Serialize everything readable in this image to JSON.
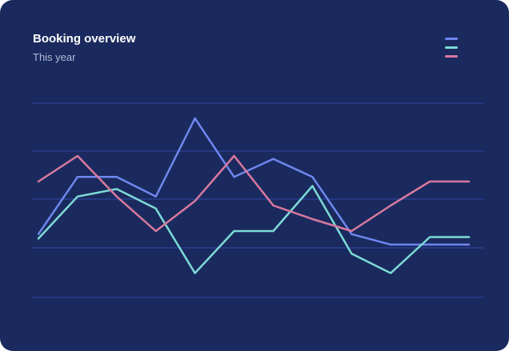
{
  "header": {
    "title": "Booking overview",
    "subtitle": "This year"
  },
  "colors": {
    "background": "#1b2a5e",
    "grid": "#3048a8",
    "series": [
      "#6f87ef",
      "#7ddbd6",
      "#d9799f"
    ]
  },
  "legend": {
    "icons": [
      "legend-line-blue",
      "legend-line-teal",
      "legend-line-pink"
    ]
  },
  "chart_data": {
    "type": "line",
    "title": "Booking overview",
    "subtitle": "This year",
    "xlabel": "",
    "ylabel": "",
    "x": [
      0,
      1,
      2,
      3,
      4,
      5,
      6,
      7,
      8,
      9,
      10,
      11
    ],
    "ylim": [
      0,
      100
    ],
    "grid": true,
    "legend": "top-right",
    "series": [
      {
        "color": "#6f87ef",
        "values": [
          23,
          61,
          61,
          48,
          100,
          61,
          73,
          61,
          23,
          16,
          16,
          16
        ]
      },
      {
        "color": "#7ddbd6",
        "values": [
          20,
          48,
          53,
          40,
          -3,
          25,
          25,
          55,
          10,
          -3,
          21,
          21
        ]
      },
      {
        "color": "#d9799f",
        "values": [
          58,
          75,
          48,
          25,
          45,
          75,
          42,
          33,
          25,
          42,
          58,
          58
        ]
      }
    ]
  }
}
